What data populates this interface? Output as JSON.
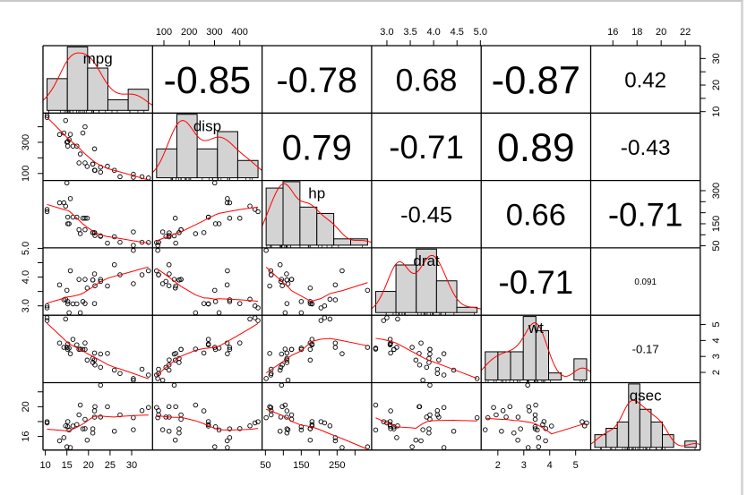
{
  "chart_data": {
    "type": "scatter-matrix",
    "title": "",
    "variables": [
      "mpg",
      "disp",
      "hp",
      "drat",
      "wt",
      "qsec"
    ],
    "data": {
      "mpg": [
        21,
        21,
        22.8,
        21.4,
        18.7,
        18.1,
        14.3,
        24.4,
        22.8,
        19.2,
        17.8,
        16.4,
        17.3,
        15.2,
        10.4,
        10.4,
        14.7,
        32.4,
        30.4,
        33.9,
        21.5,
        15.5,
        15.2,
        13.3,
        19.2,
        27.3,
        26,
        30.4,
        15.8,
        19.7,
        15,
        21.4
      ],
      "disp": [
        160,
        160,
        108,
        258,
        360,
        225,
        360,
        146.7,
        140.8,
        167.6,
        167.6,
        275.8,
        275.8,
        275.8,
        472,
        460,
        440,
        78.7,
        75.7,
        71.1,
        120.1,
        318,
        304,
        350,
        400,
        79,
        120.3,
        95.1,
        351,
        145,
        301,
        121
      ],
      "hp": [
        110,
        110,
        93,
        110,
        175,
        105,
        245,
        62,
        95,
        123,
        123,
        180,
        180,
        180,
        205,
        215,
        230,
        66,
        52,
        65,
        97,
        150,
        150,
        245,
        175,
        66,
        91,
        113,
        264,
        175,
        335,
        109
      ],
      "drat": [
        3.9,
        3.9,
        3.85,
        3.08,
        3.15,
        2.76,
        3.21,
        3.69,
        3.92,
        3.92,
        3.92,
        3.07,
        3.07,
        3.07,
        2.93,
        3,
        3.23,
        4.08,
        4.93,
        4.22,
        3.7,
        2.76,
        3.15,
        3.73,
        3.08,
        4.08,
        4.43,
        3.77,
        4.22,
        3.62,
        3.54,
        4.11
      ],
      "wt": [
        2.62,
        2.875,
        2.32,
        3.215,
        3.44,
        3.46,
        3.57,
        3.19,
        3.15,
        3.44,
        3.44,
        4.07,
        3.73,
        3.78,
        5.25,
        5.424,
        5.345,
        2.2,
        1.615,
        1.835,
        2.465,
        3.52,
        3.435,
        3.84,
        3.845,
        1.935,
        2.14,
        1.513,
        3.17,
        2.77,
        3.57,
        2.78
      ],
      "qsec": [
        16.46,
        17.02,
        18.61,
        19.44,
        17.02,
        20.22,
        15.84,
        20,
        22.9,
        18.3,
        18.9,
        17.4,
        17.6,
        18,
        17.98,
        17.82,
        17.42,
        19.47,
        18.52,
        19.9,
        20.01,
        16.87,
        17.3,
        15.41,
        17.05,
        18.9,
        16.7,
        16.9,
        14.5,
        15.5,
        14.6,
        18.6
      ]
    },
    "hist_breaks": {
      "mpg": [
        10,
        15,
        20,
        25,
        30,
        35
      ],
      "disp": [
        0,
        100,
        200,
        300,
        400,
        500
      ],
      "hp": [
        50,
        100,
        150,
        200,
        250,
        300,
        350
      ],
      "drat": [
        2.5,
        3.0,
        3.5,
        4.0,
        4.5,
        5.0
      ],
      "wt": [
        1.5,
        2,
        2.5,
        3,
        3.5,
        4,
        4.5,
        5,
        5.5
      ],
      "qsec": [
        14,
        15,
        16,
        17,
        18,
        19,
        20,
        21,
        22,
        23
      ]
    },
    "correlations": [
      {
        "row": 0,
        "col": 1,
        "label": "-0.85"
      },
      {
        "row": 0,
        "col": 2,
        "label": "-0.78"
      },
      {
        "row": 0,
        "col": 3,
        "label": "0.68"
      },
      {
        "row": 0,
        "col": 4,
        "label": "-0.87"
      },
      {
        "row": 0,
        "col": 5,
        "label": "0.42"
      },
      {
        "row": 1,
        "col": 2,
        "label": "0.79"
      },
      {
        "row": 1,
        "col": 3,
        "label": "-0.71"
      },
      {
        "row": 1,
        "col": 4,
        "label": "0.89"
      },
      {
        "row": 1,
        "col": 5,
        "label": "-0.43"
      },
      {
        "row": 2,
        "col": 3,
        "label": "-0.45"
      },
      {
        "row": 2,
        "col": 4,
        "label": "0.66"
      },
      {
        "row": 2,
        "col": 5,
        "label": "-0.71"
      },
      {
        "row": 3,
        "col": 4,
        "label": "-0.71"
      },
      {
        "row": 3,
        "col": 5,
        "label": "0.091"
      },
      {
        "row": 4,
        "col": 5,
        "label": "-0.17"
      }
    ],
    "axes": [
      {
        "var": 0,
        "side": "bottom",
        "ticks": [
          10,
          15,
          20,
          25,
          30
        ],
        "labels": [
          "10",
          "15",
          "20",
          "25",
          "30"
        ]
      },
      {
        "var": 0,
        "side": "right",
        "ticks": [
          10,
          15,
          20,
          25,
          30
        ],
        "labels": [
          "10",
          "",
          "20",
          "",
          "30"
        ]
      },
      {
        "var": 1,
        "side": "top",
        "ticks": [
          100,
          200,
          300,
          400
        ],
        "labels": [
          "100",
          "200",
          "300",
          "400"
        ]
      },
      {
        "var": 1,
        "side": "left",
        "ticks": [
          100,
          200,
          300,
          400
        ],
        "labels": [
          "100",
          "",
          "300",
          ""
        ]
      },
      {
        "var": 2,
        "side": "bottom",
        "ticks": [
          50,
          100,
          150,
          200,
          250,
          300
        ],
        "labels": [
          "50",
          "",
          "150",
          "",
          "250",
          ""
        ]
      },
      {
        "var": 2,
        "side": "right",
        "ticks": [
          50,
          100,
          150,
          200,
          250,
          300
        ],
        "labels": [
          "50",
          "",
          "150",
          "",
          "",
          "300"
        ]
      },
      {
        "var": 3,
        "side": "top",
        "ticks": [
          3.0,
          3.5,
          4.0,
          4.5,
          5.0
        ],
        "labels": [
          "3.0",
          "3.5",
          "4.0",
          "4.5",
          "5.0"
        ]
      },
      {
        "var": 3,
        "side": "left",
        "ticks": [
          3.0,
          3.5,
          4.0,
          4.5,
          5.0
        ],
        "labels": [
          "3.0",
          "",
          "4.0",
          "",
          "5.0"
        ]
      },
      {
        "var": 4,
        "side": "bottom",
        "ticks": [
          2,
          3,
          4,
          5
        ],
        "labels": [
          "2",
          "3",
          "4",
          "5"
        ]
      },
      {
        "var": 4,
        "side": "right",
        "ticks": [
          2,
          3,
          4,
          5
        ],
        "labels": [
          "2",
          "3",
          "4",
          "5"
        ]
      },
      {
        "var": 5,
        "side": "top",
        "ticks": [
          16,
          18,
          20,
          22
        ],
        "labels": [
          "16",
          "18",
          "20",
          "22"
        ]
      },
      {
        "var": 5,
        "side": "left",
        "ticks": [
          16,
          18,
          20,
          22
        ],
        "labels": [
          "16",
          "",
          "20",
          ""
        ]
      }
    ],
    "colors": {
      "points": "#000000",
      "smooth": "#ff0000",
      "hist_fill": "#d3d3d3",
      "density": "#ff0000"
    }
  }
}
